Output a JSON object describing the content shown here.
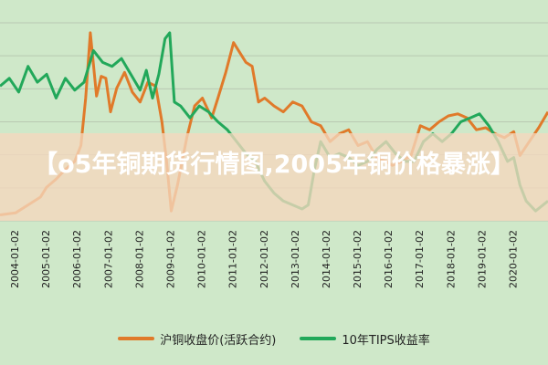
{
  "overlay": {
    "title": "【o5年铜期货行情图,2005年铜价格暴涨】"
  },
  "legend": {
    "items": [
      {
        "label": "沪铜收盘价(活跃合约)",
        "color": "#e07a2a"
      },
      {
        "label": "10年TIPS收益率",
        "color": "#22a85a"
      }
    ]
  },
  "chart_data": {
    "type": "line",
    "x_tick_labels": [
      "2004-01-02",
      "2005-01-02",
      "2006-01-02",
      "2007-01-02",
      "2008-01-02",
      "2009-01-02",
      "2010-01-02",
      "2011-01-02",
      "2012-01-02",
      "2013-01-02",
      "2014-01-02",
      "2015-01-02",
      "2016-01-02",
      "2017-01-02",
      "2018-01-02",
      "2019-01-02",
      "2020-01-02"
    ],
    "xlim": [
      2003.5,
      2021.1
    ],
    "ylim": [
      0,
      1
    ],
    "y_axis_labels": "not shown",
    "grid": "horizontal",
    "legend_position": "bottom",
    "series": [
      {
        "name": "沪铜收盘价(活跃合约)",
        "color": "#e07a2a",
        "x": [
          2003.5,
          2004.0,
          2004.4,
          2004.8,
          2005.0,
          2005.3,
          2005.6,
          2005.9,
          2006.1,
          2006.25,
          2006.4,
          2006.6,
          2006.75,
          2006.9,
          2007.05,
          2007.25,
          2007.5,
          2007.75,
          2008.0,
          2008.25,
          2008.5,
          2008.7,
          2008.85,
          2009.0,
          2009.2,
          2009.5,
          2009.75,
          2010.0,
          2010.3,
          2010.5,
          2010.75,
          2011.0,
          2011.2,
          2011.4,
          2011.6,
          2011.8,
          2012.0,
          2012.3,
          2012.6,
          2012.9,
          2013.2,
          2013.5,
          2013.8,
          2014.1,
          2014.4,
          2014.7,
          2015.0,
          2015.3,
          2015.6,
          2015.9,
          2016.1,
          2016.4,
          2016.7,
          2017.0,
          2017.3,
          2017.6,
          2017.9,
          2018.2,
          2018.5,
          2018.8,
          2019.1,
          2019.4,
          2019.7,
          2020.0,
          2020.2,
          2020.5,
          2020.8,
          2021.1
        ],
        "y": [
          0.03,
          0.04,
          0.08,
          0.12,
          0.17,
          0.21,
          0.26,
          0.3,
          0.38,
          0.62,
          0.95,
          0.63,
          0.73,
          0.72,
          0.55,
          0.67,
          0.75,
          0.65,
          0.6,
          0.7,
          0.68,
          0.5,
          0.3,
          0.05,
          0.18,
          0.42,
          0.58,
          0.62,
          0.52,
          0.62,
          0.75,
          0.9,
          0.85,
          0.8,
          0.78,
          0.6,
          0.62,
          0.58,
          0.55,
          0.6,
          0.58,
          0.5,
          0.48,
          0.4,
          0.44,
          0.46,
          0.38,
          0.4,
          0.32,
          0.3,
          0.28,
          0.3,
          0.33,
          0.48,
          0.46,
          0.5,
          0.53,
          0.54,
          0.52,
          0.46,
          0.47,
          0.44,
          0.42,
          0.45,
          0.33,
          0.4,
          0.47,
          0.55
        ]
      },
      {
        "name": "10年TIPS收益率",
        "color": "#22a85a",
        "x": [
          2003.5,
          2003.8,
          2004.1,
          2004.4,
          2004.7,
          2005.0,
          2005.3,
          2005.6,
          2005.9,
          2006.2,
          2006.5,
          2006.8,
          2007.1,
          2007.4,
          2007.7,
          2008.0,
          2008.2,
          2008.4,
          2008.6,
          2008.8,
          2008.95,
          2009.1,
          2009.3,
          2009.6,
          2009.9,
          2010.2,
          2010.5,
          2010.8,
          2011.1,
          2011.4,
          2011.7,
          2012.0,
          2012.3,
          2012.6,
          2012.9,
          2013.2,
          2013.4,
          2013.6,
          2013.8,
          2014.1,
          2014.4,
          2014.7,
          2015.0,
          2015.3,
          2015.6,
          2015.9,
          2016.2,
          2016.5,
          2016.8,
          2017.1,
          2017.4,
          2017.7,
          2018.0,
          2018.3,
          2018.6,
          2018.9,
          2019.2,
          2019.5,
          2019.8,
          2020.0,
          2020.2,
          2020.4,
          2020.7,
          2021.1
        ],
        "y": [
          0.68,
          0.72,
          0.65,
          0.78,
          0.7,
          0.74,
          0.62,
          0.72,
          0.66,
          0.7,
          0.86,
          0.8,
          0.78,
          0.82,
          0.74,
          0.66,
          0.76,
          0.62,
          0.74,
          0.92,
          0.95,
          0.6,
          0.58,
          0.52,
          0.58,
          0.55,
          0.5,
          0.46,
          0.4,
          0.34,
          0.3,
          0.2,
          0.14,
          0.1,
          0.08,
          0.06,
          0.08,
          0.26,
          0.4,
          0.32,
          0.34,
          0.32,
          0.28,
          0.3,
          0.36,
          0.4,
          0.34,
          0.3,
          0.3,
          0.4,
          0.44,
          0.4,
          0.44,
          0.5,
          0.52,
          0.54,
          0.48,
          0.4,
          0.3,
          0.32,
          0.18,
          0.1,
          0.05,
          0.1
        ]
      }
    ]
  }
}
